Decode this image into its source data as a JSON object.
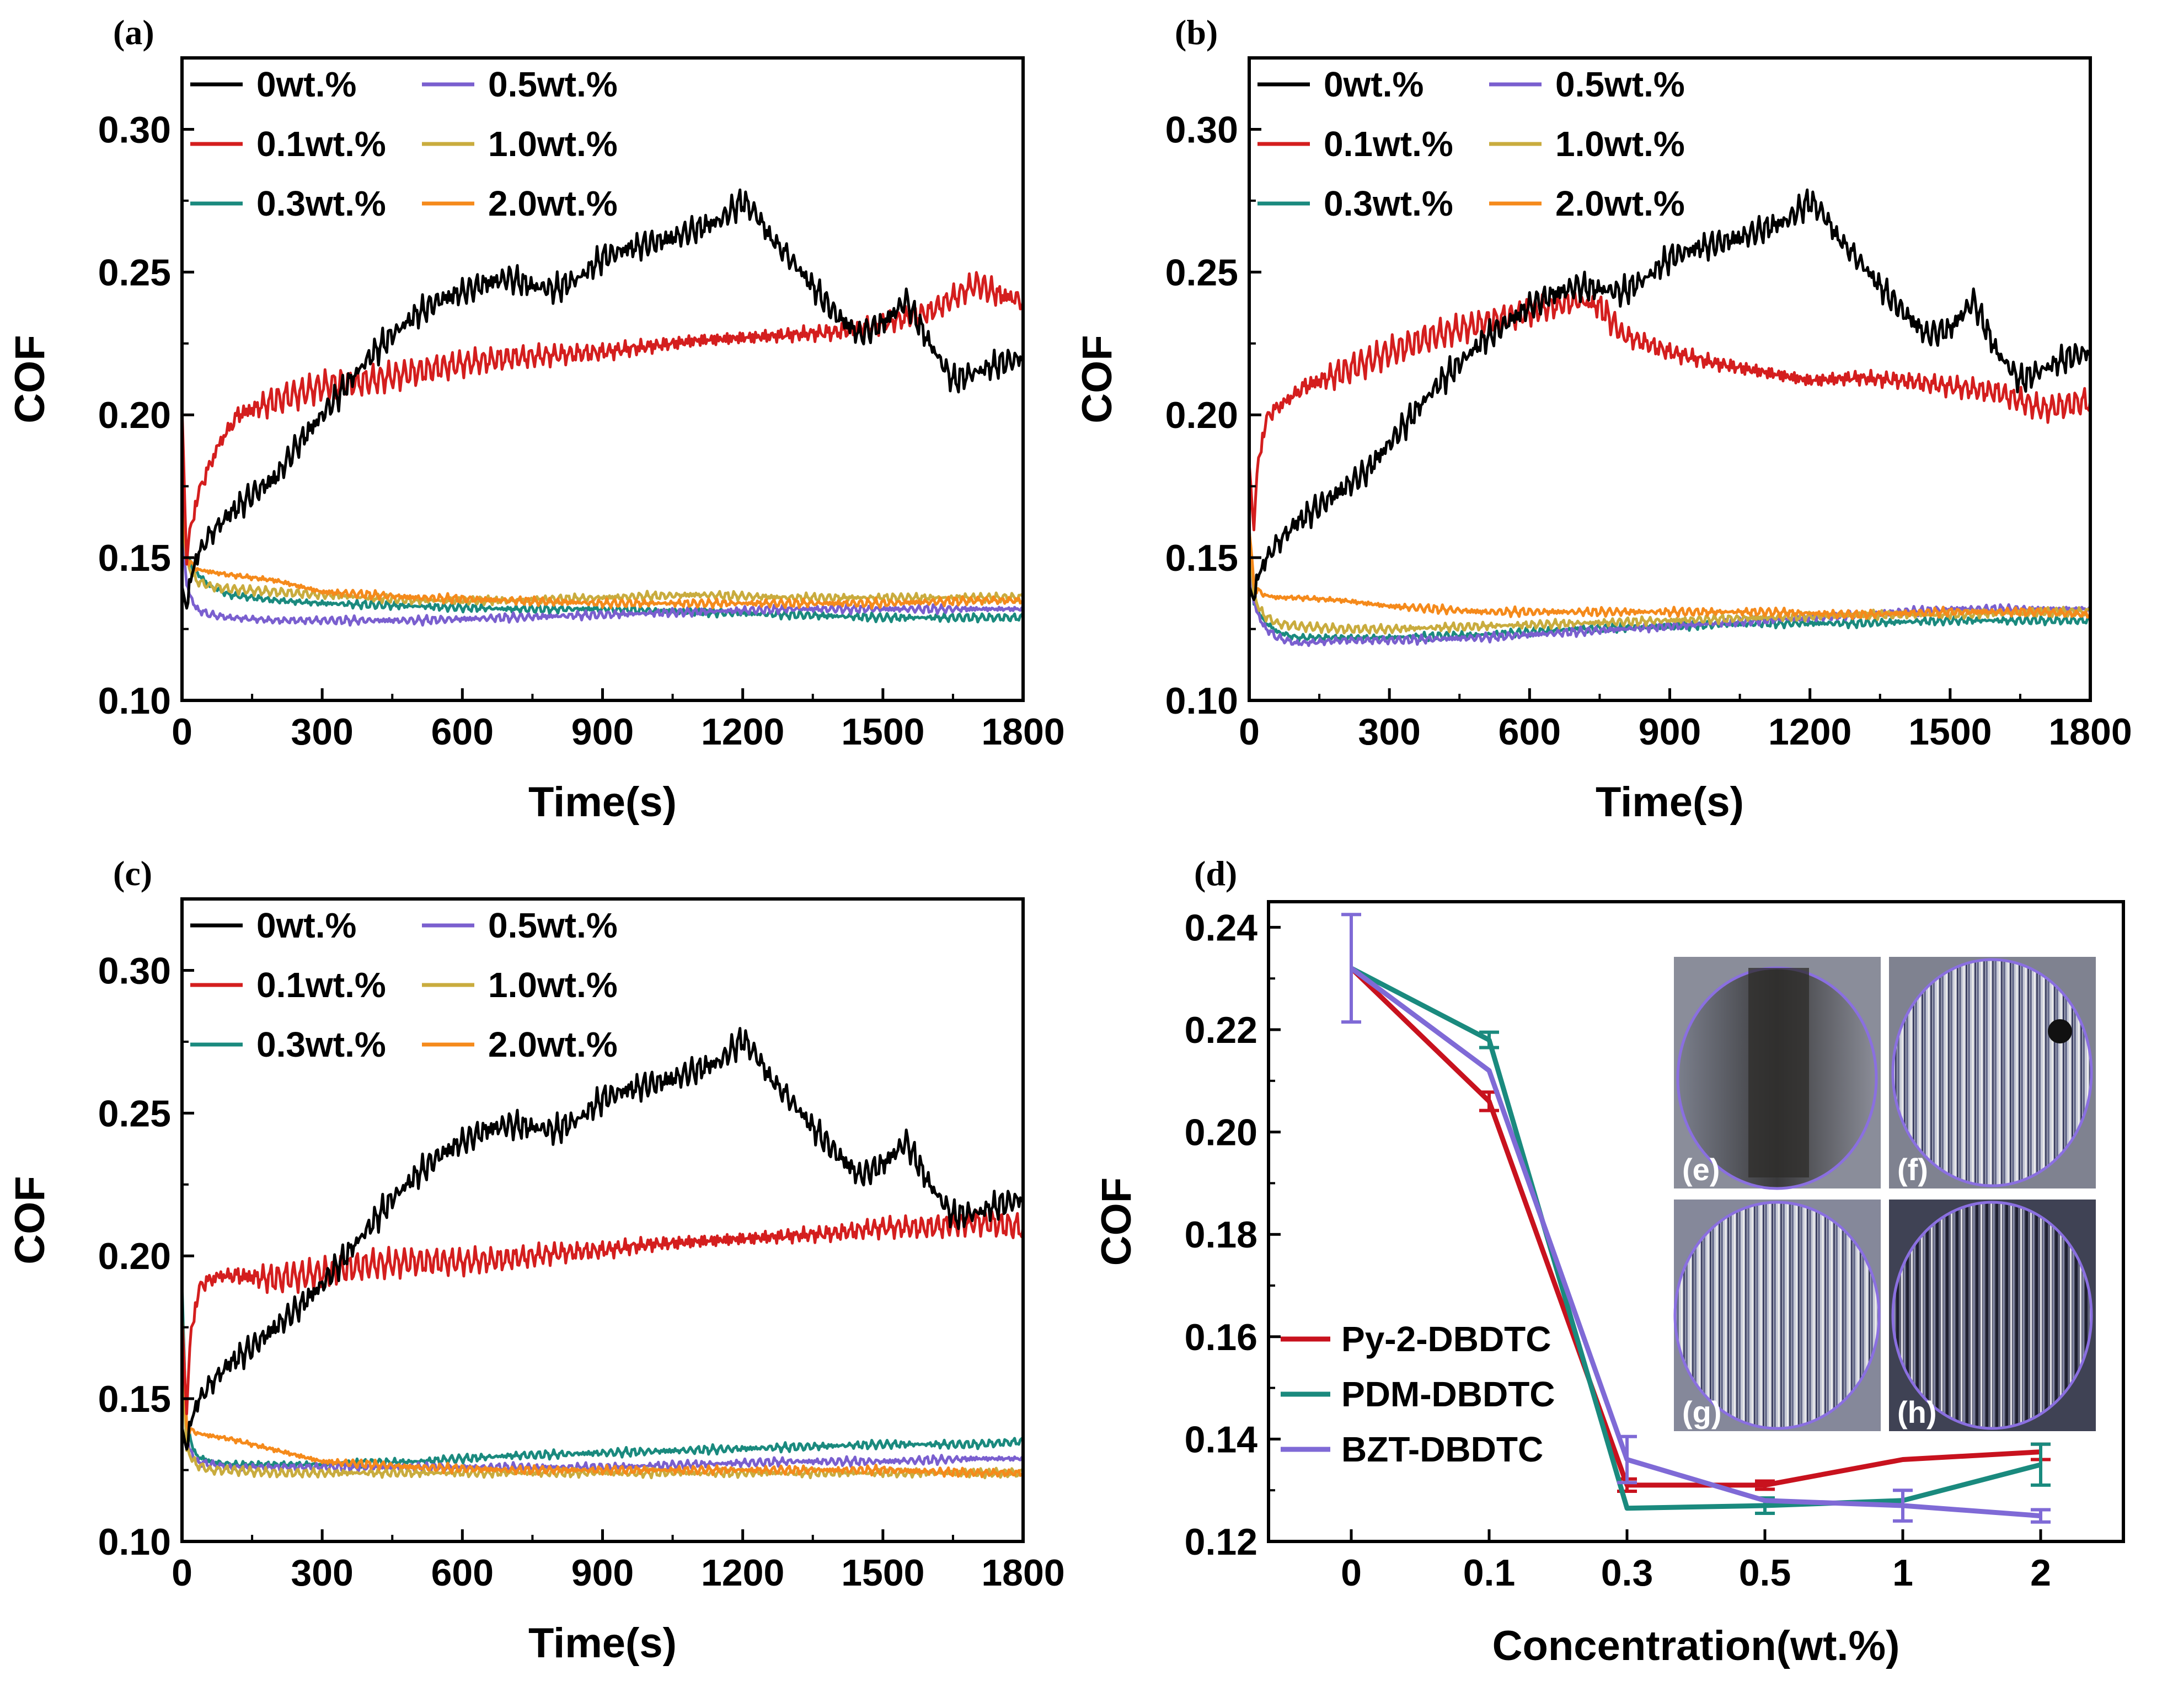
{
  "panel_labels": [
    "(a)",
    "(b)",
    "(c)",
    "(d)"
  ],
  "inset_labels": [
    "(e)",
    "(f)",
    "(g)",
    "(h)"
  ],
  "colors": {
    "0wt.%": "#000000",
    "0.1wt.%": "#d41e1e",
    "0.3wt.%": "#1a8a7e",
    "0.5wt.%": "#7a5fcf",
    "1.0wt.%": "#c9ac3e",
    "2.0wt.%": "#f58a1b",
    "Py-2-DBDTC": "#c8121e",
    "PDM-DBDTC": "#1a8a7e",
    "BZT-DBDTC": "#7f6ad6"
  },
  "chart_data": [
    {
      "panel": "(a)",
      "type": "line",
      "xlabel": "Time(s)",
      "ylabel": "COF",
      "xlim": [
        0,
        1800
      ],
      "ylim": [
        0.1,
        0.325
      ],
      "xticks": [
        "0",
        "300",
        "600",
        "900",
        "1200",
        "1500",
        "1800"
      ],
      "yticks": [
        "0.10",
        "0.15",
        "0.20",
        "0.25",
        "0.30"
      ],
      "legend": [
        "0wt.%",
        "0.5wt.%",
        "0.1wt.%",
        "1.0wt.%",
        "0.3wt.%",
        "2.0wt.%"
      ],
      "legend_position": "top-left",
      "series": [
        {
          "name": "0wt.%",
          "x": [
            0,
            10,
            30,
            60,
            100,
            150,
            200,
            250,
            300,
            350,
            400,
            450,
            500,
            550,
            600,
            650,
            700,
            750,
            800,
            850,
            900,
            950,
            1000,
            1050,
            1100,
            1150,
            1200,
            1230,
            1260,
            1300,
            1350,
            1400,
            1450,
            1500,
            1550,
            1600,
            1650,
            1700,
            1750,
            1800
          ],
          "values": [
            0.14,
            0.135,
            0.15,
            0.158,
            0.165,
            0.172,
            0.178,
            0.19,
            0.2,
            0.21,
            0.22,
            0.228,
            0.235,
            0.24,
            0.243,
            0.246,
            0.248,
            0.245,
            0.244,
            0.248,
            0.255,
            0.258,
            0.26,
            0.262,
            0.265,
            0.268,
            0.275,
            0.27,
            0.262,
            0.255,
            0.245,
            0.235,
            0.228,
            0.232,
            0.24,
            0.225,
            0.212,
            0.215,
            0.218,
            0.22
          ]
        },
        {
          "name": "0.1wt.%",
          "x": [
            0,
            10,
            20,
            40,
            80,
            120,
            200,
            300,
            400,
            500,
            600,
            700,
            800,
            900,
            1000,
            1100,
            1200,
            1300,
            1400,
            1500,
            1600,
            1700,
            1750,
            1800
          ],
          "values": [
            0.2,
            0.148,
            0.162,
            0.175,
            0.19,
            0.2,
            0.205,
            0.21,
            0.212,
            0.215,
            0.218,
            0.22,
            0.221,
            0.222,
            0.224,
            0.226,
            0.227,
            0.228,
            0.229,
            0.232,
            0.236,
            0.246,
            0.242,
            0.24
          ]
        },
        {
          "name": "0.3wt.%",
          "x": [
            0,
            10,
            30,
            60,
            100,
            200,
            300,
            500,
            700,
            900,
            1100,
            1300,
            1500,
            1700,
            1800
          ],
          "values": [
            0.18,
            0.15,
            0.145,
            0.14,
            0.137,
            0.135,
            0.134,
            0.133,
            0.132,
            0.132,
            0.131,
            0.13,
            0.129,
            0.129,
            0.129
          ]
        },
        {
          "name": "0.5wt.%",
          "x": [
            0,
            10,
            30,
            60,
            100,
            200,
            300,
            500,
            700,
            900,
            1100,
            1300,
            1500,
            1700,
            1800
          ],
          "values": [
            0.16,
            0.14,
            0.132,
            0.13,
            0.129,
            0.128,
            0.128,
            0.128,
            0.129,
            0.13,
            0.131,
            0.132,
            0.132,
            0.132,
            0.132
          ]
        },
        {
          "name": "1.0wt.%",
          "x": [
            0,
            10,
            30,
            60,
            100,
            200,
            300,
            500,
            700,
            900,
            1100,
            1300,
            1500,
            1700,
            1800
          ],
          "values": [
            0.17,
            0.148,
            0.142,
            0.14,
            0.139,
            0.138,
            0.137,
            0.135,
            0.135,
            0.136,
            0.137,
            0.136,
            0.136,
            0.136,
            0.136
          ]
        },
        {
          "name": "2.0wt.%",
          "x": [
            0,
            10,
            30,
            60,
            100,
            200,
            300,
            500,
            700,
            900,
            1100,
            1300,
            1500,
            1700,
            1800
          ],
          "values": [
            0.17,
            0.15,
            0.146,
            0.145,
            0.144,
            0.142,
            0.138,
            0.136,
            0.135,
            0.134,
            0.134,
            0.134,
            0.134,
            0.135,
            0.135
          ]
        }
      ]
    },
    {
      "panel": "(b)",
      "type": "line",
      "xlabel": "Time(s)",
      "ylabel": "COF",
      "xlim": [
        0,
        1800
      ],
      "ylim": [
        0.1,
        0.325
      ],
      "xticks": [
        "0",
        "300",
        "600",
        "900",
        "1200",
        "1500",
        "1800"
      ],
      "yticks": [
        "0.10",
        "0.15",
        "0.20",
        "0.25",
        "0.30"
      ],
      "legend": [
        "0wt.%",
        "0.5wt.%",
        "0.1wt.%",
        "1.0wt.%",
        "0.3wt.%",
        "2.0wt.%"
      ],
      "legend_position": "top-left",
      "series": [
        {
          "name": "0wt.%",
          "x": [
            0,
            10,
            30,
            60,
            100,
            150,
            200,
            250,
            300,
            350,
            400,
            450,
            500,
            550,
            600,
            650,
            700,
            750,
            800,
            850,
            900,
            950,
            1000,
            1050,
            1100,
            1150,
            1200,
            1230,
            1260,
            1300,
            1350,
            1400,
            1450,
            1500,
            1550,
            1600,
            1650,
            1700,
            1750,
            1800
          ],
          "values": [
            0.14,
            0.138,
            0.148,
            0.155,
            0.162,
            0.168,
            0.174,
            0.18,
            0.19,
            0.2,
            0.21,
            0.218,
            0.226,
            0.232,
            0.238,
            0.242,
            0.245,
            0.244,
            0.243,
            0.248,
            0.255,
            0.258,
            0.26,
            0.262,
            0.265,
            0.268,
            0.275,
            0.27,
            0.262,
            0.255,
            0.245,
            0.236,
            0.228,
            0.23,
            0.24,
            0.222,
            0.212,
            0.216,
            0.22,
            0.222
          ]
        },
        {
          "name": "0.1wt.%",
          "x": [
            0,
            10,
            20,
            40,
            80,
            120,
            200,
            300,
            400,
            500,
            600,
            700,
            750,
            800,
            900,
            1000,
            1100,
            1200,
            1300,
            1400,
            1500,
            1600,
            1700,
            1800
          ],
          "values": [
            0.18,
            0.16,
            0.185,
            0.2,
            0.205,
            0.21,
            0.215,
            0.222,
            0.228,
            0.232,
            0.236,
            0.24,
            0.238,
            0.228,
            0.222,
            0.218,
            0.215,
            0.212,
            0.213,
            0.212,
            0.21,
            0.208,
            0.202,
            0.205
          ]
        },
        {
          "name": "0.3wt.%",
          "x": [
            0,
            10,
            30,
            60,
            100,
            200,
            300,
            500,
            700,
            900,
            1100,
            1300,
            1500,
            1700,
            1800
          ],
          "values": [
            0.16,
            0.135,
            0.128,
            0.124,
            0.122,
            0.122,
            0.122,
            0.123,
            0.125,
            0.126,
            0.127,
            0.127,
            0.128,
            0.128,
            0.128
          ]
        },
        {
          "name": "0.5wt.%",
          "x": [
            0,
            10,
            30,
            60,
            100,
            200,
            300,
            500,
            700,
            900,
            1100,
            1300,
            1500,
            1700,
            1800
          ],
          "values": [
            0.15,
            0.134,
            0.126,
            0.122,
            0.12,
            0.121,
            0.121,
            0.122,
            0.124,
            0.126,
            0.128,
            0.13,
            0.132,
            0.132,
            0.132
          ]
        },
        {
          "name": "1.0wt.%",
          "x": [
            0,
            10,
            30,
            60,
            100,
            200,
            300,
            500,
            700,
            900,
            1100,
            1300,
            1500,
            1700,
            1800
          ],
          "values": [
            0.16,
            0.136,
            0.13,
            0.127,
            0.126,
            0.125,
            0.125,
            0.126,
            0.127,
            0.128,
            0.129,
            0.13,
            0.13,
            0.131,
            0.131
          ]
        },
        {
          "name": "2.0wt.%",
          "x": [
            0,
            10,
            30,
            60,
            100,
            200,
            300,
            500,
            700,
            900,
            1100,
            1300,
            1500,
            1700,
            1800
          ],
          "values": [
            0.16,
            0.14,
            0.137,
            0.136,
            0.136,
            0.135,
            0.133,
            0.131,
            0.131,
            0.131,
            0.131,
            0.13,
            0.131,
            0.131,
            0.13
          ]
        }
      ]
    },
    {
      "panel": "(c)",
      "type": "line",
      "xlabel": "Time(s)",
      "ylabel": "COF",
      "xlim": [
        0,
        1800
      ],
      "ylim": [
        0.1,
        0.325
      ],
      "xticks": [
        "0",
        "300",
        "600",
        "900",
        "1200",
        "1500",
        "1800"
      ],
      "yticks": [
        "0.10",
        "0.15",
        "0.20",
        "0.25",
        "0.30"
      ],
      "legend": [
        "0wt.%",
        "0.5wt.%",
        "0.1wt.%",
        "1.0wt.%",
        "0.3wt.%",
        "2.0wt.%"
      ],
      "legend_position": "top-left",
      "series": [
        {
          "name": "0wt.%",
          "x": [
            0,
            10,
            30,
            60,
            100,
            150,
            200,
            250,
            300,
            350,
            400,
            450,
            500,
            550,
            600,
            650,
            700,
            750,
            800,
            850,
            900,
            950,
            1000,
            1050,
            1100,
            1150,
            1200,
            1230,
            1260,
            1300,
            1350,
            1400,
            1450,
            1500,
            1550,
            1600,
            1650,
            1700,
            1750,
            1800
          ],
          "values": [
            0.14,
            0.135,
            0.148,
            0.155,
            0.162,
            0.168,
            0.175,
            0.182,
            0.19,
            0.2,
            0.21,
            0.22,
            0.228,
            0.235,
            0.24,
            0.244,
            0.246,
            0.245,
            0.244,
            0.248,
            0.255,
            0.258,
            0.26,
            0.262,
            0.265,
            0.268,
            0.276,
            0.27,
            0.262,
            0.255,
            0.245,
            0.236,
            0.228,
            0.232,
            0.24,
            0.225,
            0.214,
            0.215,
            0.218,
            0.22
          ]
        },
        {
          "name": "0.1wt.%",
          "x": [
            0,
            10,
            20,
            40,
            80,
            120,
            200,
            300,
            400,
            500,
            600,
            700,
            800,
            900,
            1000,
            1100,
            1200,
            1300,
            1400,
            1500,
            1600,
            1700,
            1800
          ],
          "values": [
            0.175,
            0.145,
            0.175,
            0.19,
            0.193,
            0.193,
            0.192,
            0.194,
            0.197,
            0.198,
            0.198,
            0.199,
            0.201,
            0.202,
            0.204,
            0.205,
            0.206,
            0.207,
            0.208,
            0.21,
            0.21,
            0.212,
            0.21
          ]
        },
        {
          "name": "0.3wt.%",
          "x": [
            0,
            10,
            30,
            60,
            100,
            200,
            300,
            500,
            700,
            900,
            1100,
            1300,
            1500,
            1700,
            1800
          ],
          "values": [
            0.19,
            0.14,
            0.13,
            0.128,
            0.127,
            0.127,
            0.127,
            0.128,
            0.13,
            0.131,
            0.132,
            0.133,
            0.134,
            0.134,
            0.135
          ]
        },
        {
          "name": "0.5wt.%",
          "x": [
            0,
            10,
            30,
            60,
            100,
            200,
            300,
            500,
            700,
            900,
            1100,
            1300,
            1500,
            1700,
            1800
          ],
          "values": [
            0.17,
            0.135,
            0.128,
            0.127,
            0.126,
            0.126,
            0.126,
            0.126,
            0.126,
            0.126,
            0.127,
            0.128,
            0.128,
            0.129,
            0.129
          ]
        },
        {
          "name": "1.0wt.%",
          "x": [
            0,
            10,
            30,
            60,
            100,
            200,
            300,
            500,
            700,
            900,
            1100,
            1300,
            1500,
            1700,
            1800
          ],
          "values": [
            0.17,
            0.132,
            0.127,
            0.125,
            0.125,
            0.124,
            0.124,
            0.124,
            0.124,
            0.124,
            0.124,
            0.124,
            0.124,
            0.124,
            0.124
          ]
        },
        {
          "name": "2.0wt.%",
          "x": [
            0,
            10,
            30,
            60,
            100,
            200,
            300,
            500,
            700,
            900,
            1100,
            1300,
            1500,
            1700,
            1800
          ],
          "values": [
            0.18,
            0.14,
            0.138,
            0.137,
            0.136,
            0.132,
            0.128,
            0.126,
            0.125,
            0.125,
            0.125,
            0.125,
            0.125,
            0.124,
            0.124
          ]
        }
      ]
    },
    {
      "panel": "(d)",
      "type": "line",
      "xlabel": "Concentration(wt.%)",
      "ylabel": "COF",
      "categories": [
        "0",
        "0.1",
        "0.3",
        "0.5",
        "1",
        "2"
      ],
      "ylim": [
        0.12,
        0.245
      ],
      "yticks": [
        "0.12",
        "0.14",
        "0.16",
        "0.18",
        "0.20",
        "0.22",
        "0.24"
      ],
      "legend": [
        "Py-2-DBDTC",
        "PDM-DBDTC",
        "BZT-DBDTC"
      ],
      "legend_position": "bottom-left",
      "series": [
        {
          "name": "Py-2-DBDTC",
          "values": [
            0.232,
            0.206,
            0.131,
            0.131,
            0.136,
            0.1375
          ],
          "errors": [
            0,
            0.0018,
            0.0012,
            0.0008,
            0,
            0.0015
          ]
        },
        {
          "name": "PDM-DBDTC",
          "values": [
            0.232,
            0.218,
            0.1265,
            0.127,
            0.128,
            0.135
          ],
          "errors": [
            0,
            0.0015,
            0,
            0.0015,
            0,
            0.004
          ]
        },
        {
          "name": "BZT-DBDTC",
          "values": [
            0.232,
            0.212,
            0.136,
            0.128,
            0.127,
            0.125
          ],
          "errors": [
            0.0105,
            0,
            0.0045,
            0,
            0.003,
            0.0012
          ]
        }
      ]
    }
  ]
}
